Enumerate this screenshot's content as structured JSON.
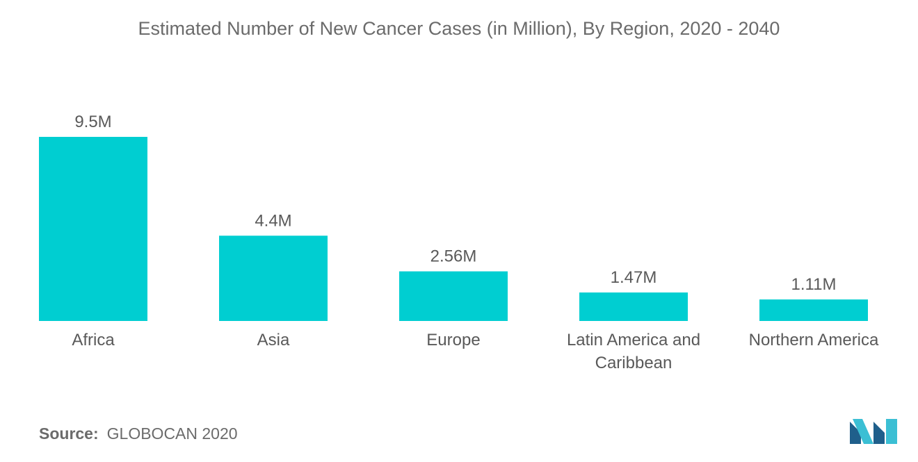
{
  "chart_data": {
    "type": "bar",
    "title": "Estimated Number of New Cancer Cases (in Million), By Region, 2020 - 2040",
    "categories": [
      "Africa",
      "Asia",
      "Europe",
      "Latin America and Caribbean",
      "Northern America"
    ],
    "category_lines": [
      [
        "Africa"
      ],
      [
        "Asia"
      ],
      [
        "Europe"
      ],
      [
        "Latin America and",
        "Caribbean"
      ],
      [
        "Northern America"
      ]
    ],
    "values": [
      9.5,
      4.4,
      2.56,
      1.47,
      1.11
    ],
    "data_labels": [
      "9.5M",
      "4.4M",
      "2.56M",
      "1.47M",
      "1.11M"
    ],
    "xlabel": "",
    "ylabel": "",
    "ylim": [
      0,
      9.5
    ],
    "grid": false,
    "legend": "none",
    "bar_color": "#00CED1"
  },
  "source": {
    "label": "Source:",
    "text": "GLOBOCAN 2020"
  },
  "colors": {
    "logo_dark": "#1f5f8b",
    "logo_light": "#3bbfd4"
  }
}
